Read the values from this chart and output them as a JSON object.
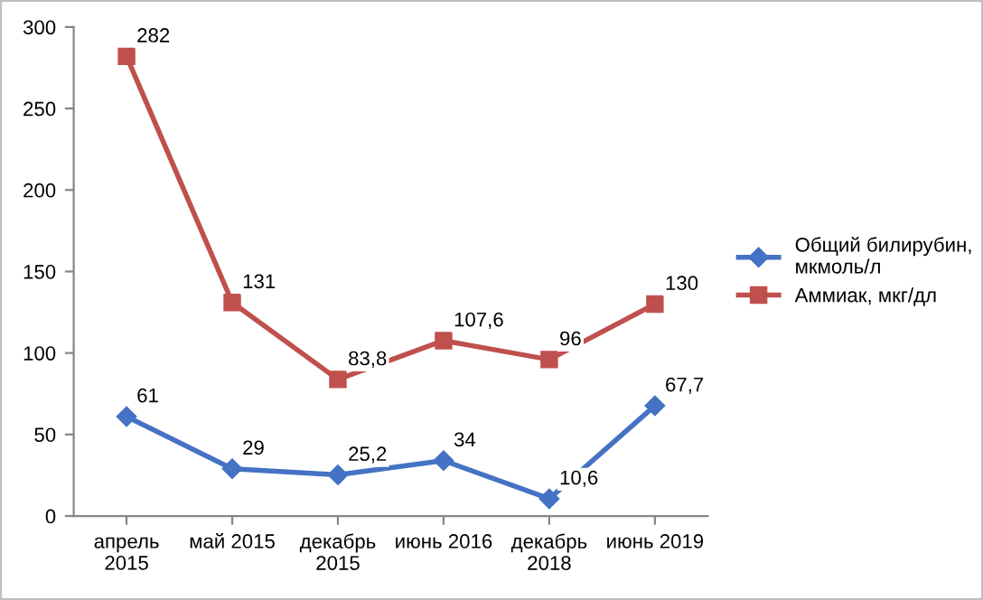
{
  "chart_data": {
    "type": "line",
    "categories": [
      "апрель\n2015",
      "май 2015",
      "декабрь\n2015",
      "июнь 2016",
      "декабрь\n2018",
      "июнь 2019"
    ],
    "series": [
      {
        "name": "Общий билирубин,\nмкмоль/л",
        "color": "#4472c4",
        "marker": "diamond",
        "values": [
          61,
          29,
          25.2,
          34,
          10.6,
          67.7
        ],
        "value_labels": [
          "61",
          "29",
          "25,2",
          "34",
          "10,6",
          "67,7"
        ]
      },
      {
        "name": "Аммиак, мкг/дл",
        "color": "#c0504d",
        "marker": "square",
        "values": [
          282,
          131,
          83.8,
          107.6,
          96,
          130
        ],
        "value_labels": [
          "282",
          "131",
          "83,8",
          "107,6",
          "96",
          "130"
        ]
      }
    ],
    "ylim": [
      0,
      300
    ],
    "yticks": [
      0,
      50,
      100,
      150,
      200,
      250,
      300
    ],
    "grid": false,
    "legend": "right",
    "line_style": "solid"
  }
}
